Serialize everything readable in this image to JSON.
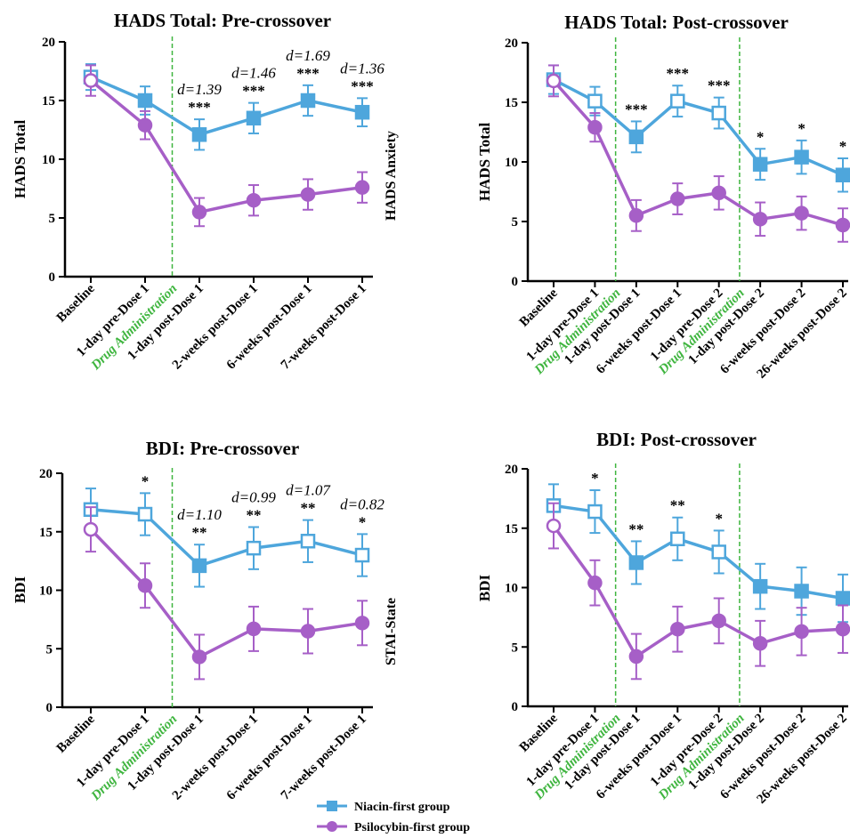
{
  "colors": {
    "niacin": "#4ea6dc",
    "psilocybin": "#a65fc7",
    "drug_line": "#3fb53f",
    "axis": "#000000"
  },
  "legend": {
    "niacin_label": "Niacin-first group",
    "psilocybin_label": "Psilocybin-first group"
  },
  "side_labels": {
    "top": "HADS Anxiety",
    "bottom": "STAI-State"
  },
  "chart_data": [
    {
      "type": "line",
      "title": "HADS Total: Pre-crossover",
      "ylabel": "HADS Total",
      "ylim": [
        0,
        20
      ],
      "yticks": [
        0,
        5,
        10,
        15,
        20
      ],
      "categories": [
        "Baseline",
        "1-day pre-Dose 1",
        "1-day post-Dose 1",
        "2-weeks post-Dose 1",
        "6-weeks post-Dose 1",
        "7-weeks post-Dose 1"
      ],
      "drug_administration": [
        {
          "after_index": 1,
          "label": "Drug Administration"
        }
      ],
      "series": [
        {
          "name": "Niacin-first group",
          "values": [
            17.0,
            15.0,
            12.1,
            13.5,
            15.0,
            14.0
          ],
          "err": [
            1.1,
            1.2,
            1.3,
            1.3,
            1.3,
            1.2
          ],
          "open": [
            true,
            false,
            false,
            false,
            false,
            false
          ]
        },
        {
          "name": "Psilocybin-first group",
          "values": [
            16.7,
            12.9,
            5.5,
            6.5,
            7.0,
            7.6
          ],
          "err": [
            1.3,
            1.2,
            1.2,
            1.3,
            1.3,
            1.3
          ],
          "open": [
            true,
            false,
            false,
            false,
            false,
            false
          ]
        }
      ],
      "annotations": [
        {
          "index": 2,
          "stars": "***",
          "d": "d=1.39"
        },
        {
          "index": 3,
          "stars": "***",
          "d": "d=1.46"
        },
        {
          "index": 4,
          "stars": "***",
          "d": "d=1.69"
        },
        {
          "index": 5,
          "stars": "***",
          "d": "d=1.36"
        }
      ]
    },
    {
      "type": "line",
      "title": "HADS Total: Post-crossover",
      "ylabel": "HADS Total",
      "ylim": [
        0,
        20
      ],
      "yticks": [
        0,
        5,
        10,
        15,
        20
      ],
      "categories": [
        "Baseline",
        "1-day pre-Dose 1",
        "1-day post-Dose 1",
        "6-weeks post-Dose 1",
        "1-day pre-Dose 2",
        "1-day post-Dose 2",
        "6-weeks post-Dose 2",
        "26-weeks post-Dose 2"
      ],
      "drug_administration": [
        {
          "after_index": 1,
          "label": "Drug Administration"
        },
        {
          "after_index": 4,
          "label": "Drug Administration"
        }
      ],
      "series": [
        {
          "name": "Niacin-first group",
          "values": [
            16.9,
            15.1,
            12.1,
            15.1,
            14.1,
            9.8,
            10.4,
            8.9
          ],
          "err": [
            1.2,
            1.2,
            1.3,
            1.3,
            1.3,
            1.3,
            1.4,
            1.4
          ],
          "open": [
            true,
            true,
            false,
            true,
            true,
            false,
            false,
            false
          ]
        },
        {
          "name": "Psilocybin-first group",
          "values": [
            16.8,
            12.9,
            5.5,
            6.9,
            7.4,
            5.2,
            5.7,
            4.7
          ],
          "err": [
            1.3,
            1.2,
            1.3,
            1.3,
            1.4,
            1.4,
            1.4,
            1.4
          ],
          "open": [
            true,
            false,
            false,
            false,
            false,
            false,
            false,
            false
          ]
        }
      ],
      "annotations": [
        {
          "index": 2,
          "stars": "***",
          "d": ""
        },
        {
          "index": 3,
          "stars": "***",
          "d": ""
        },
        {
          "index": 4,
          "stars": "***",
          "d": ""
        },
        {
          "index": 5,
          "stars": "*",
          "d": ""
        },
        {
          "index": 6,
          "stars": "*",
          "d": ""
        },
        {
          "index": 7,
          "stars": "*",
          "d": ""
        }
      ]
    },
    {
      "type": "line",
      "title": "BDI: Pre-crossover",
      "ylabel": "BDI",
      "ylim": [
        0,
        20
      ],
      "yticks": [
        0,
        5,
        10,
        15,
        20
      ],
      "categories": [
        "Baseline",
        "1-day pre-Dose 1",
        "1-day post-Dose 1",
        "2-weeks post-Dose 1",
        "6-weeks post-Dose 1",
        "7-weeks post-Dose 1"
      ],
      "drug_administration": [
        {
          "after_index": 1,
          "label": "Drug Administration"
        }
      ],
      "series": [
        {
          "name": "Niacin-first group",
          "values": [
            16.9,
            16.5,
            12.1,
            13.6,
            14.2,
            13.0
          ],
          "err": [
            1.8,
            1.8,
            1.8,
            1.8,
            1.8,
            1.8
          ],
          "open": [
            true,
            true,
            false,
            true,
            true,
            true
          ]
        },
        {
          "name": "Psilocybin-first group",
          "values": [
            15.2,
            10.4,
            4.3,
            6.7,
            6.5,
            7.2
          ],
          "err": [
            1.9,
            1.9,
            1.9,
            1.9,
            1.9,
            1.9
          ],
          "open": [
            true,
            false,
            false,
            false,
            false,
            false
          ]
        }
      ],
      "annotations": [
        {
          "index": 1,
          "stars": "*",
          "d": ""
        },
        {
          "index": 2,
          "stars": "**",
          "d": "d=1.10"
        },
        {
          "index": 3,
          "stars": "**",
          "d": "d=0.99"
        },
        {
          "index": 4,
          "stars": "**",
          "d": "d=1.07"
        },
        {
          "index": 5,
          "stars": "*",
          "d": "d=0.82"
        }
      ]
    },
    {
      "type": "line",
      "title": "BDI: Post-crossover",
      "ylabel": "BDI",
      "ylim": [
        0,
        20
      ],
      "yticks": [
        0,
        5,
        10,
        15,
        20
      ],
      "categories": [
        "Baseline",
        "1-day pre-Dose 1",
        "1-day post-Dose 1",
        "6-weeks post-Dose 1",
        "1-day pre-Dose 2",
        "1-day post-Dose 2",
        "6-weeks post-Dose 2",
        "26-weeks post-Dose 2"
      ],
      "drug_administration": [
        {
          "after_index": 1,
          "label": "Drug Administration"
        },
        {
          "after_index": 4,
          "label": "Drug Administration"
        }
      ],
      "series": [
        {
          "name": "Niacin-first group",
          "values": [
            16.9,
            16.4,
            12.1,
            14.1,
            13.0,
            10.1,
            9.7,
            9.1
          ],
          "err": [
            1.8,
            1.8,
            1.8,
            1.8,
            1.8,
            1.9,
            2.0,
            2.0
          ],
          "open": [
            true,
            true,
            false,
            true,
            true,
            false,
            false,
            false
          ]
        },
        {
          "name": "Psilocybin-first group",
          "values": [
            15.2,
            10.4,
            4.2,
            6.5,
            7.2,
            5.3,
            6.3,
            6.5
          ],
          "err": [
            1.9,
            1.9,
            1.9,
            1.9,
            1.9,
            1.9,
            2.0,
            2.0
          ],
          "open": [
            true,
            false,
            false,
            false,
            false,
            false,
            false,
            false
          ]
        }
      ],
      "annotations": [
        {
          "index": 1,
          "stars": "*",
          "d": ""
        },
        {
          "index": 2,
          "stars": "**",
          "d": ""
        },
        {
          "index": 3,
          "stars": "**",
          "d": ""
        },
        {
          "index": 4,
          "stars": "*",
          "d": ""
        }
      ]
    }
  ]
}
